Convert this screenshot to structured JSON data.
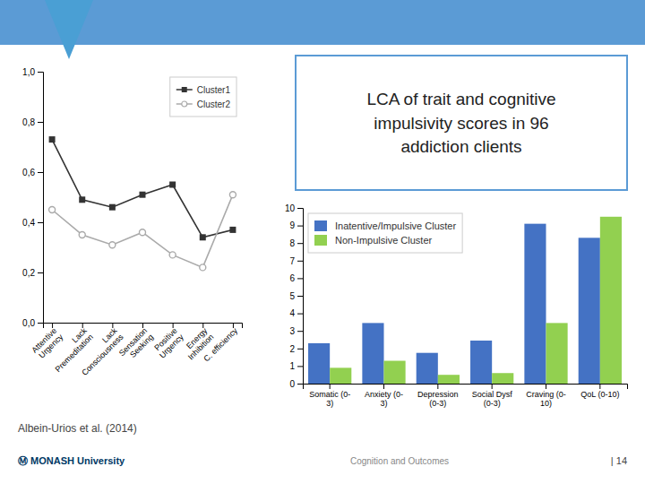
{
  "chart_data": [
    {
      "type": "line",
      "categories": [
        "Attentive\nUrgency",
        "Lack\nPremeditation",
        "Lack\nConsciousness",
        "Sensation\nSeeking",
        "Positive\nUrgency",
        "Energy\nInhibition",
        "C. efficiency"
      ],
      "series": [
        {
          "name": "Cluster1",
          "color": "#333333",
          "marker": "square",
          "values": [
            0.73,
            0.49,
            0.46,
            0.51,
            0.55,
            0.34,
            0.37
          ]
        },
        {
          "name": "Cluster2",
          "color": "#aaaaaa",
          "marker": "circle",
          "values": [
            0.45,
            0.35,
            0.31,
            0.36,
            0.27,
            0.22,
            0.51
          ]
        }
      ],
      "ylim": [
        0.0,
        1.0
      ],
      "yticks": [
        {
          "value": 0.0,
          "label": "0,0"
        },
        {
          "value": 0.2,
          "label": "0,2"
        },
        {
          "value": 0.4,
          "label": "0,4"
        },
        {
          "value": 0.6,
          "label": "0,6"
        },
        {
          "value": 0.8,
          "label": "0,8"
        },
        {
          "value": 1.0,
          "label": "1,0"
        }
      ],
      "legend": "upper right"
    },
    {
      "type": "bar",
      "title": "LCA of trait and cognitive\nimpulsivity scores in 96\naddiction clients",
      "categories": [
        "Somatic (0-\n3)",
        "Anxiety (0-\n3)",
        "Depression\n(0-3)",
        "Social Dysf\n(0-3)",
        "Craving (0-\n10)",
        "QoL (0-10)"
      ],
      "series": [
        {
          "name": "Inatentive/Impulsive Cluster",
          "color": "#4472c4",
          "values": [
            2.3,
            3.45,
            1.75,
            2.45,
            9.1,
            8.3
          ]
        },
        {
          "name": "Non-Impulsive Cluster",
          "color": "#92d050",
          "values": [
            0.9,
            1.3,
            0.5,
            0.6,
            3.45,
            9.5
          ]
        }
      ],
      "ylim": [
        0,
        10
      ],
      "yticks": [
        0,
        1,
        2,
        3,
        4,
        5,
        6,
        7,
        8,
        9,
        10
      ],
      "legend": "upper left",
      "annotations": [
        "Albein-Urios et al. (2014)",
        "Ⓜ  MONASH University",
        "Cognition and Outcomes",
        "| 14"
      ]
    }
  ]
}
